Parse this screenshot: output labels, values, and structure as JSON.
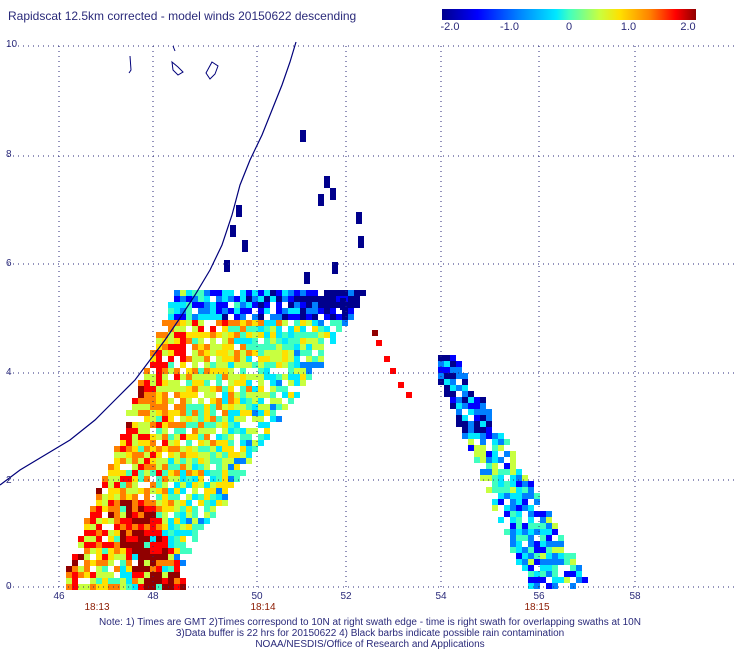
{
  "title": "Rapidscat 12.5km corrected - model winds 20150622 descending",
  "colorbar": {
    "labels": [
      "-2.0",
      "-1.0",
      "0",
      "1.0",
      "2.0"
    ],
    "colors": [
      "#00008c",
      "#0000ff",
      "#0080ff",
      "#00e8ff",
      "#40ffc0",
      "#c8ff40",
      "#ffe000",
      "#ff8000",
      "#ff0000",
      "#900000"
    ]
  },
  "axes": {
    "y_ticks": [
      "0",
      "2",
      "4",
      "6",
      "8",
      "10"
    ],
    "x_ticks": [
      "46",
      "48",
      "50",
      "52",
      "54",
      "56",
      "58"
    ]
  },
  "times": [
    "18:13",
    "18:14",
    "18:15"
  ],
  "notes": {
    "line1": "Note: 1) Times are GMT 2)Times correspond to 10N at right swath edge - time is right swath for overlapping swaths at 10N",
    "line2": "3)Data buffer is 22 hrs for 20150622 4) Black barbs indicate possible rain contamination",
    "line3": "NOAA/NESDIS/Office of Research and Applications"
  },
  "chart_data": {
    "type": "heatmap",
    "title": "Rapidscat 12.5km corrected - model winds 20150622 descending",
    "x_range": [
      45.2,
      59.5
    ],
    "y_range": [
      0,
      10
    ],
    "value_range": [
      -2.0,
      2.0
    ],
    "swaths": [
      {
        "lon_center": 49.2,
        "lat_min": 0,
        "lat_max": 5.6,
        "mean_diff": 0.6
      },
      {
        "lon_center": 55.2,
        "lat_min": 0,
        "lat_max": 4.2,
        "mean_diff": -0.6
      }
    ]
  }
}
